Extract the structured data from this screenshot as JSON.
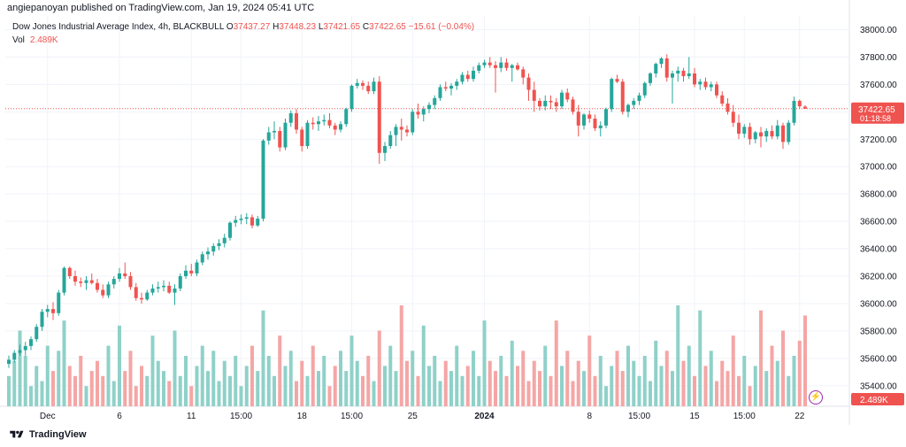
{
  "header": {
    "publisher": "angiepanoyan published on TradingView.com, Jan 19, 2024 05:41 UTC"
  },
  "legend": {
    "name": "Dow Jones Industrial Average Index, 4h, BLACKBULL",
    "o_label": "O",
    "o_value": "37437.27",
    "h_label": "H",
    "h_value": "37448.23",
    "l_label": "L",
    "l_value": "37421.65",
    "c_label": "C",
    "c_value": "37422.65",
    "change": "−15.61 (−0.04%)",
    "vol_label": "Vol",
    "vol_value": "2.489K"
  },
  "price_badge": {
    "price": "37422.65",
    "countdown": "01:18:58",
    "color": "#ef5350"
  },
  "volume_badge": {
    "value": "2.489K",
    "color": "#ef5350"
  },
  "footer": {
    "brand": "TradingView"
  },
  "colors": {
    "up": "#26a69a",
    "down": "#ef5350",
    "vol_up": "#8fd1c9",
    "vol_down": "#f4a6a5",
    "grid": "#f0f3fa",
    "axis_text": "#131722"
  },
  "chart_data": {
    "type": "candlestick",
    "title": "Dow Jones Industrial Average Index, 4h, BLACKBULL",
    "interval": "4h",
    "ylim": [
      35250,
      38100
    ],
    "y_ticks": [
      35400,
      35600,
      35800,
      36000,
      36200,
      36400,
      36600,
      36800,
      37000,
      37200,
      37400,
      37600,
      37800,
      38000
    ],
    "x_tick_labels": [
      {
        "label": "Dec",
        "index": 7
      },
      {
        "label": "6",
        "index": 20
      },
      {
        "label": "11",
        "index": 33
      },
      {
        "label": "15:00",
        "index": 42
      },
      {
        "label": "18",
        "index": 53
      },
      {
        "label": "15:00",
        "index": 62
      },
      {
        "label": "25",
        "index": 73
      },
      {
        "label": "2024",
        "index": 86
      },
      {
        "label": "8",
        "index": 105
      },
      {
        "label": "15:00",
        "index": 114
      },
      {
        "label": "15",
        "index": 124
      },
      {
        "label": "15:00",
        "index": 133
      },
      {
        "label": "22",
        "index": 143
      }
    ],
    "current_price": 37422.65,
    "grid": true,
    "candles": [
      [
        35560,
        35620,
        35530,
        35590
      ],
      [
        35590,
        35660,
        35570,
        35640
      ],
      [
        35640,
        35700,
        35620,
        35660
      ],
      [
        35660,
        35720,
        35620,
        35690
      ],
      [
        35690,
        35760,
        35660,
        35740
      ],
      [
        35740,
        35850,
        35720,
        35830
      ],
      [
        35830,
        35960,
        35800,
        35940
      ],
      [
        35940,
        35990,
        35900,
        35960
      ],
      [
        35960,
        36010,
        35880,
        35930
      ],
      [
        35930,
        36100,
        35910,
        36080
      ],
      [
        36080,
        36270,
        36060,
        36260
      ],
      [
        36260,
        36270,
        36180,
        36200
      ],
      [
        36200,
        36240,
        36130,
        36160
      ],
      [
        36160,
        36190,
        36120,
        36150
      ],
      [
        36150,
        36200,
        36100,
        36170
      ],
      [
        36170,
        36220,
        36140,
        36150
      ],
      [
        36150,
        36180,
        36080,
        36100
      ],
      [
        36100,
        36140,
        36040,
        36060
      ],
      [
        36060,
        36160,
        36040,
        36140
      ],
      [
        36140,
        36200,
        36110,
        36180
      ],
      [
        36180,
        36260,
        36160,
        36220
      ],
      [
        36220,
        36300,
        36180,
        36200
      ],
      [
        36200,
        36230,
        36100,
        36120
      ],
      [
        36120,
        36150,
        36020,
        36040
      ],
      [
        36040,
        36080,
        36000,
        36030
      ],
      [
        36030,
        36100,
        36020,
        36080
      ],
      [
        36080,
        36140,
        36060,
        36110
      ],
      [
        36110,
        36160,
        36080,
        36120
      ],
      [
        36120,
        36170,
        36090,
        36130
      ],
      [
        36130,
        36160,
        36070,
        36080
      ],
      [
        36080,
        36140,
        35990,
        36110
      ],
      [
        36110,
        36220,
        36090,
        36200
      ],
      [
        36200,
        36280,
        36180,
        36240
      ],
      [
        36240,
        36290,
        36200,
        36220
      ],
      [
        36220,
        36320,
        36200,
        36300
      ],
      [
        36300,
        36380,
        36280,
        36360
      ],
      [
        36360,
        36410,
        36320,
        36380
      ],
      [
        36380,
        36440,
        36350,
        36420
      ],
      [
        36420,
        36470,
        36390,
        36440
      ],
      [
        36440,
        36510,
        36410,
        36480
      ],
      [
        36480,
        36600,
        36460,
        36590
      ],
      [
        36590,
        36640,
        36560,
        36610
      ],
      [
        36610,
        36650,
        36580,
        36620
      ],
      [
        36620,
        36660,
        36580,
        36630
      ],
      [
        36630,
        36650,
        36550,
        36570
      ],
      [
        36570,
        36640,
        36560,
        36620
      ],
      [
        36620,
        37200,
        36600,
        37190
      ],
      [
        37190,
        37290,
        37160,
        37250
      ],
      [
        37250,
        37330,
        37200,
        37260
      ],
      [
        37260,
        37290,
        37110,
        37140
      ],
      [
        37140,
        37350,
        37120,
        37320
      ],
      [
        37320,
        37410,
        37290,
        37390
      ],
      [
        37390,
        37420,
        37240,
        37270
      ],
      [
        37270,
        37290,
        37110,
        37150
      ],
      [
        37150,
        37340,
        37130,
        37320
      ],
      [
        37320,
        37360,
        37270,
        37310
      ],
      [
        37310,
        37370,
        37260,
        37330
      ],
      [
        37330,
        37380,
        37300,
        37340
      ],
      [
        37340,
        37390,
        37280,
        37300
      ],
      [
        37300,
        37320,
        37230,
        37270
      ],
      [
        37270,
        37330,
        37250,
        37310
      ],
      [
        37310,
        37430,
        37290,
        37420
      ],
      [
        37420,
        37600,
        37400,
        37590
      ],
      [
        37590,
        37640,
        37570,
        37610
      ],
      [
        37610,
        37630,
        37560,
        37590
      ],
      [
        37590,
        37620,
        37530,
        37550
      ],
      [
        37550,
        37650,
        37530,
        37620
      ],
      [
        37620,
        37660,
        37020,
        37100
      ],
      [
        37100,
        37180,
        37040,
        37150
      ],
      [
        37150,
        37260,
        37130,
        37230
      ],
      [
        37230,
        37310,
        37150,
        37290
      ],
      [
        37290,
        37350,
        37190,
        37270
      ],
      [
        37270,
        37300,
        37220,
        37250
      ],
      [
        37250,
        37420,
        37230,
        37400
      ],
      [
        37400,
        37460,
        37350,
        37380
      ],
      [
        37380,
        37440,
        37330,
        37420
      ],
      [
        37420,
        37470,
        37390,
        37450
      ],
      [
        37450,
        37520,
        37420,
        37500
      ],
      [
        37500,
        37600,
        37480,
        37580
      ],
      [
        37580,
        37620,
        37550,
        37570
      ],
      [
        37570,
        37610,
        37520,
        37590
      ],
      [
        37590,
        37640,
        37560,
        37620
      ],
      [
        37620,
        37690,
        37600,
        37670
      ],
      [
        37670,
        37700,
        37620,
        37640
      ],
      [
        37640,
        37730,
        37620,
        37700
      ],
      [
        37700,
        37760,
        37680,
        37740
      ],
      [
        37740,
        37780,
        37720,
        37760
      ],
      [
        37760,
        37800,
        37720,
        37740
      ],
      [
        37740,
        37770,
        37540,
        37720
      ],
      [
        37720,
        37800,
        37690,
        37760
      ],
      [
        37760,
        37790,
        37700,
        37720
      ],
      [
        37720,
        37750,
        37620,
        37740
      ],
      [
        37740,
        37760,
        37700,
        37710
      ],
      [
        37710,
        37730,
        37600,
        37650
      ],
      [
        37650,
        37680,
        37480,
        37560
      ],
      [
        37560,
        37620,
        37400,
        37480
      ],
      [
        37480,
        37500,
        37410,
        37440
      ],
      [
        37440,
        37520,
        37410,
        37480
      ],
      [
        37480,
        37520,
        37420,
        37470
      ],
      [
        37470,
        37500,
        37400,
        37440
      ],
      [
        37440,
        37560,
        37420,
        37540
      ],
      [
        37540,
        37570,
        37470,
        37490
      ],
      [
        37490,
        37510,
        37380,
        37400
      ],
      [
        37400,
        37450,
        37220,
        37300
      ],
      [
        37300,
        37390,
        37270,
        37380
      ],
      [
        37380,
        37410,
        37320,
        37350
      ],
      [
        37350,
        37380,
        37260,
        37280
      ],
      [
        37280,
        37330,
        37220,
        37300
      ],
      [
        37300,
        37430,
        37280,
        37420
      ],
      [
        37420,
        37650,
        37400,
        37640
      ],
      [
        37640,
        37670,
        37610,
        37620
      ],
      [
        37620,
        37640,
        37380,
        37400
      ],
      [
        37400,
        37460,
        37360,
        37450
      ],
      [
        37450,
        37500,
        37420,
        37480
      ],
      [
        37480,
        37540,
        37450,
        37520
      ],
      [
        37520,
        37620,
        37500,
        37610
      ],
      [
        37610,
        37690,
        37590,
        37680
      ],
      [
        37680,
        37760,
        37650,
        37750
      ],
      [
        37750,
        37800,
        37720,
        37790
      ],
      [
        37790,
        37820,
        37620,
        37650
      ],
      [
        37650,
        37700,
        37460,
        37680
      ],
      [
        37680,
        37730,
        37620,
        37700
      ],
      [
        37700,
        37720,
        37620,
        37660
      ],
      [
        37660,
        37800,
        37640,
        37680
      ],
      [
        37680,
        37720,
        37580,
        37600
      ],
      [
        37600,
        37640,
        37560,
        37620
      ],
      [
        37620,
        37650,
        37560,
        37580
      ],
      [
        37580,
        37620,
        37550,
        37600
      ],
      [
        37600,
        37620,
        37500,
        37520
      ],
      [
        37520,
        37550,
        37440,
        37460
      ],
      [
        37460,
        37500,
        37380,
        37400
      ],
      [
        37400,
        37450,
        37290,
        37320
      ],
      [
        37320,
        37380,
        37200,
        37240
      ],
      [
        37240,
        37310,
        37210,
        37290
      ],
      [
        37290,
        37320,
        37160,
        37200
      ],
      [
        37200,
        37260,
        37170,
        37250
      ],
      [
        37250,
        37290,
        37140,
        37220
      ],
      [
        37220,
        37280,
        37180,
        37260
      ],
      [
        37260,
        37300,
        37200,
        37220
      ],
      [
        37220,
        37340,
        37200,
        37300
      ],
      [
        37300,
        37320,
        37130,
        37180
      ],
      [
        37180,
        37340,
        37160,
        37320
      ],
      [
        37320,
        37510,
        37300,
        37480
      ],
      [
        37480,
        37490,
        37420,
        37440
      ],
      [
        37437.27,
        37448.23,
        37421.65,
        37422.65
      ]
    ],
    "volume_pattern": [
      0.3,
      0.45,
      0.75,
      0.5,
      0.2,
      0.4,
      0.25,
      0.6,
      0.35,
      0.55,
      0.85,
      0.4,
      0.3,
      0.5,
      0.2,
      0.35,
      0.45,
      0.3,
      0.6,
      0.25,
      0.8,
      0.35,
      0.55,
      0.2,
      0.4,
      0.3,
      0.7,
      0.45,
      0.35,
      0.25,
      0.75,
      0.3,
      0.5,
      0.2,
      0.4,
      0.6,
      0.35,
      0.55,
      0.25,
      0.45,
      0.3,
      0.5,
      0.2,
      0.4,
      0.6,
      0.35,
      0.95,
      0.5,
      0.3,
      0.7,
      0.4,
      0.55,
      0.25,
      0.45,
      0.3,
      0.6,
      0.35,
      0.5,
      0.2,
      0.4,
      0.55,
      0.35,
      0.7,
      0.45,
      0.3,
      0.5,
      0.25,
      0.75,
      0.4,
      0.6,
      0.35,
      1.0,
      0.45,
      0.55,
      0.3,
      0.8,
      0.4,
      0.5,
      0.25,
      0.45,
      0.35,
      0.6,
      0.3,
      0.4,
      0.55,
      0.3,
      0.85,
      0.45,
      0.35,
      0.5,
      0.3,
      0.65,
      0.4,
      0.55,
      0.25,
      0.45,
      0.35,
      0.6,
      0.3,
      0.85,
      0.4,
      0.55,
      0.25,
      0.45,
      0.35,
      0.7,
      0.3,
      0.5,
      0.2,
      0.4,
      0.55,
      0.35,
      0.6,
      0.45,
      0.3,
      0.5,
      0.25,
      0.65,
      0.4,
      0.55,
      0.35,
      1.0,
      0.45,
      0.6,
      0.3,
      0.95,
      0.4,
      0.55,
      0.25,
      0.45,
      0.35,
      0.7,
      0.3,
      0.5,
      0.2,
      0.4,
      0.95,
      0.35,
      0.6,
      0.45,
      0.75,
      0.3,
      0.5,
      0.65,
      0.9,
      0.55
    ]
  }
}
